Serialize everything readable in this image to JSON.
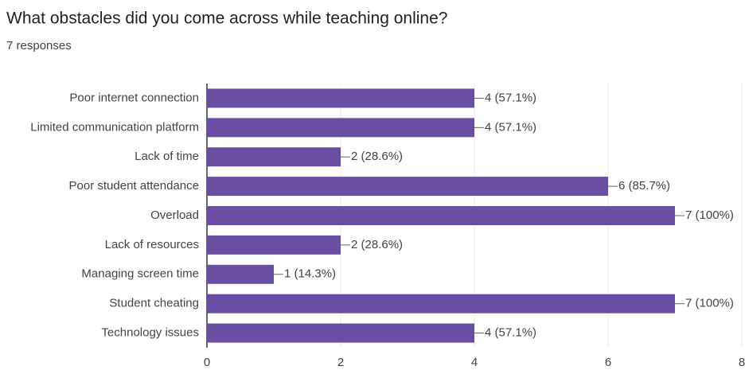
{
  "chart_data": {
    "type": "bar",
    "orientation": "horizontal",
    "title": "What obstacles did you come across while teaching online?",
    "subtitle": "7 responses",
    "categories": [
      "Poor internet connection",
      "Limited communication platform",
      "Lack of time",
      "Poor student attendance",
      "Overload",
      "Lack of resources",
      "Managing screen time",
      "Student cheating",
      "Technology issues"
    ],
    "values": [
      4,
      4,
      2,
      6,
      7,
      2,
      1,
      7,
      4
    ],
    "value_labels": [
      "4 (57.1%)",
      "4 (57.1%)",
      "2 (28.6%)",
      "6 (85.7%)",
      "7 (100%)",
      "2 (28.6%)",
      "1 (14.3%)",
      "7 (100%)",
      "4 (57.1%)"
    ],
    "color": "#6a4ea3",
    "xlim": [
      0,
      8
    ],
    "xticks": [
      0,
      2,
      4,
      6,
      8
    ],
    "grid": true
  }
}
